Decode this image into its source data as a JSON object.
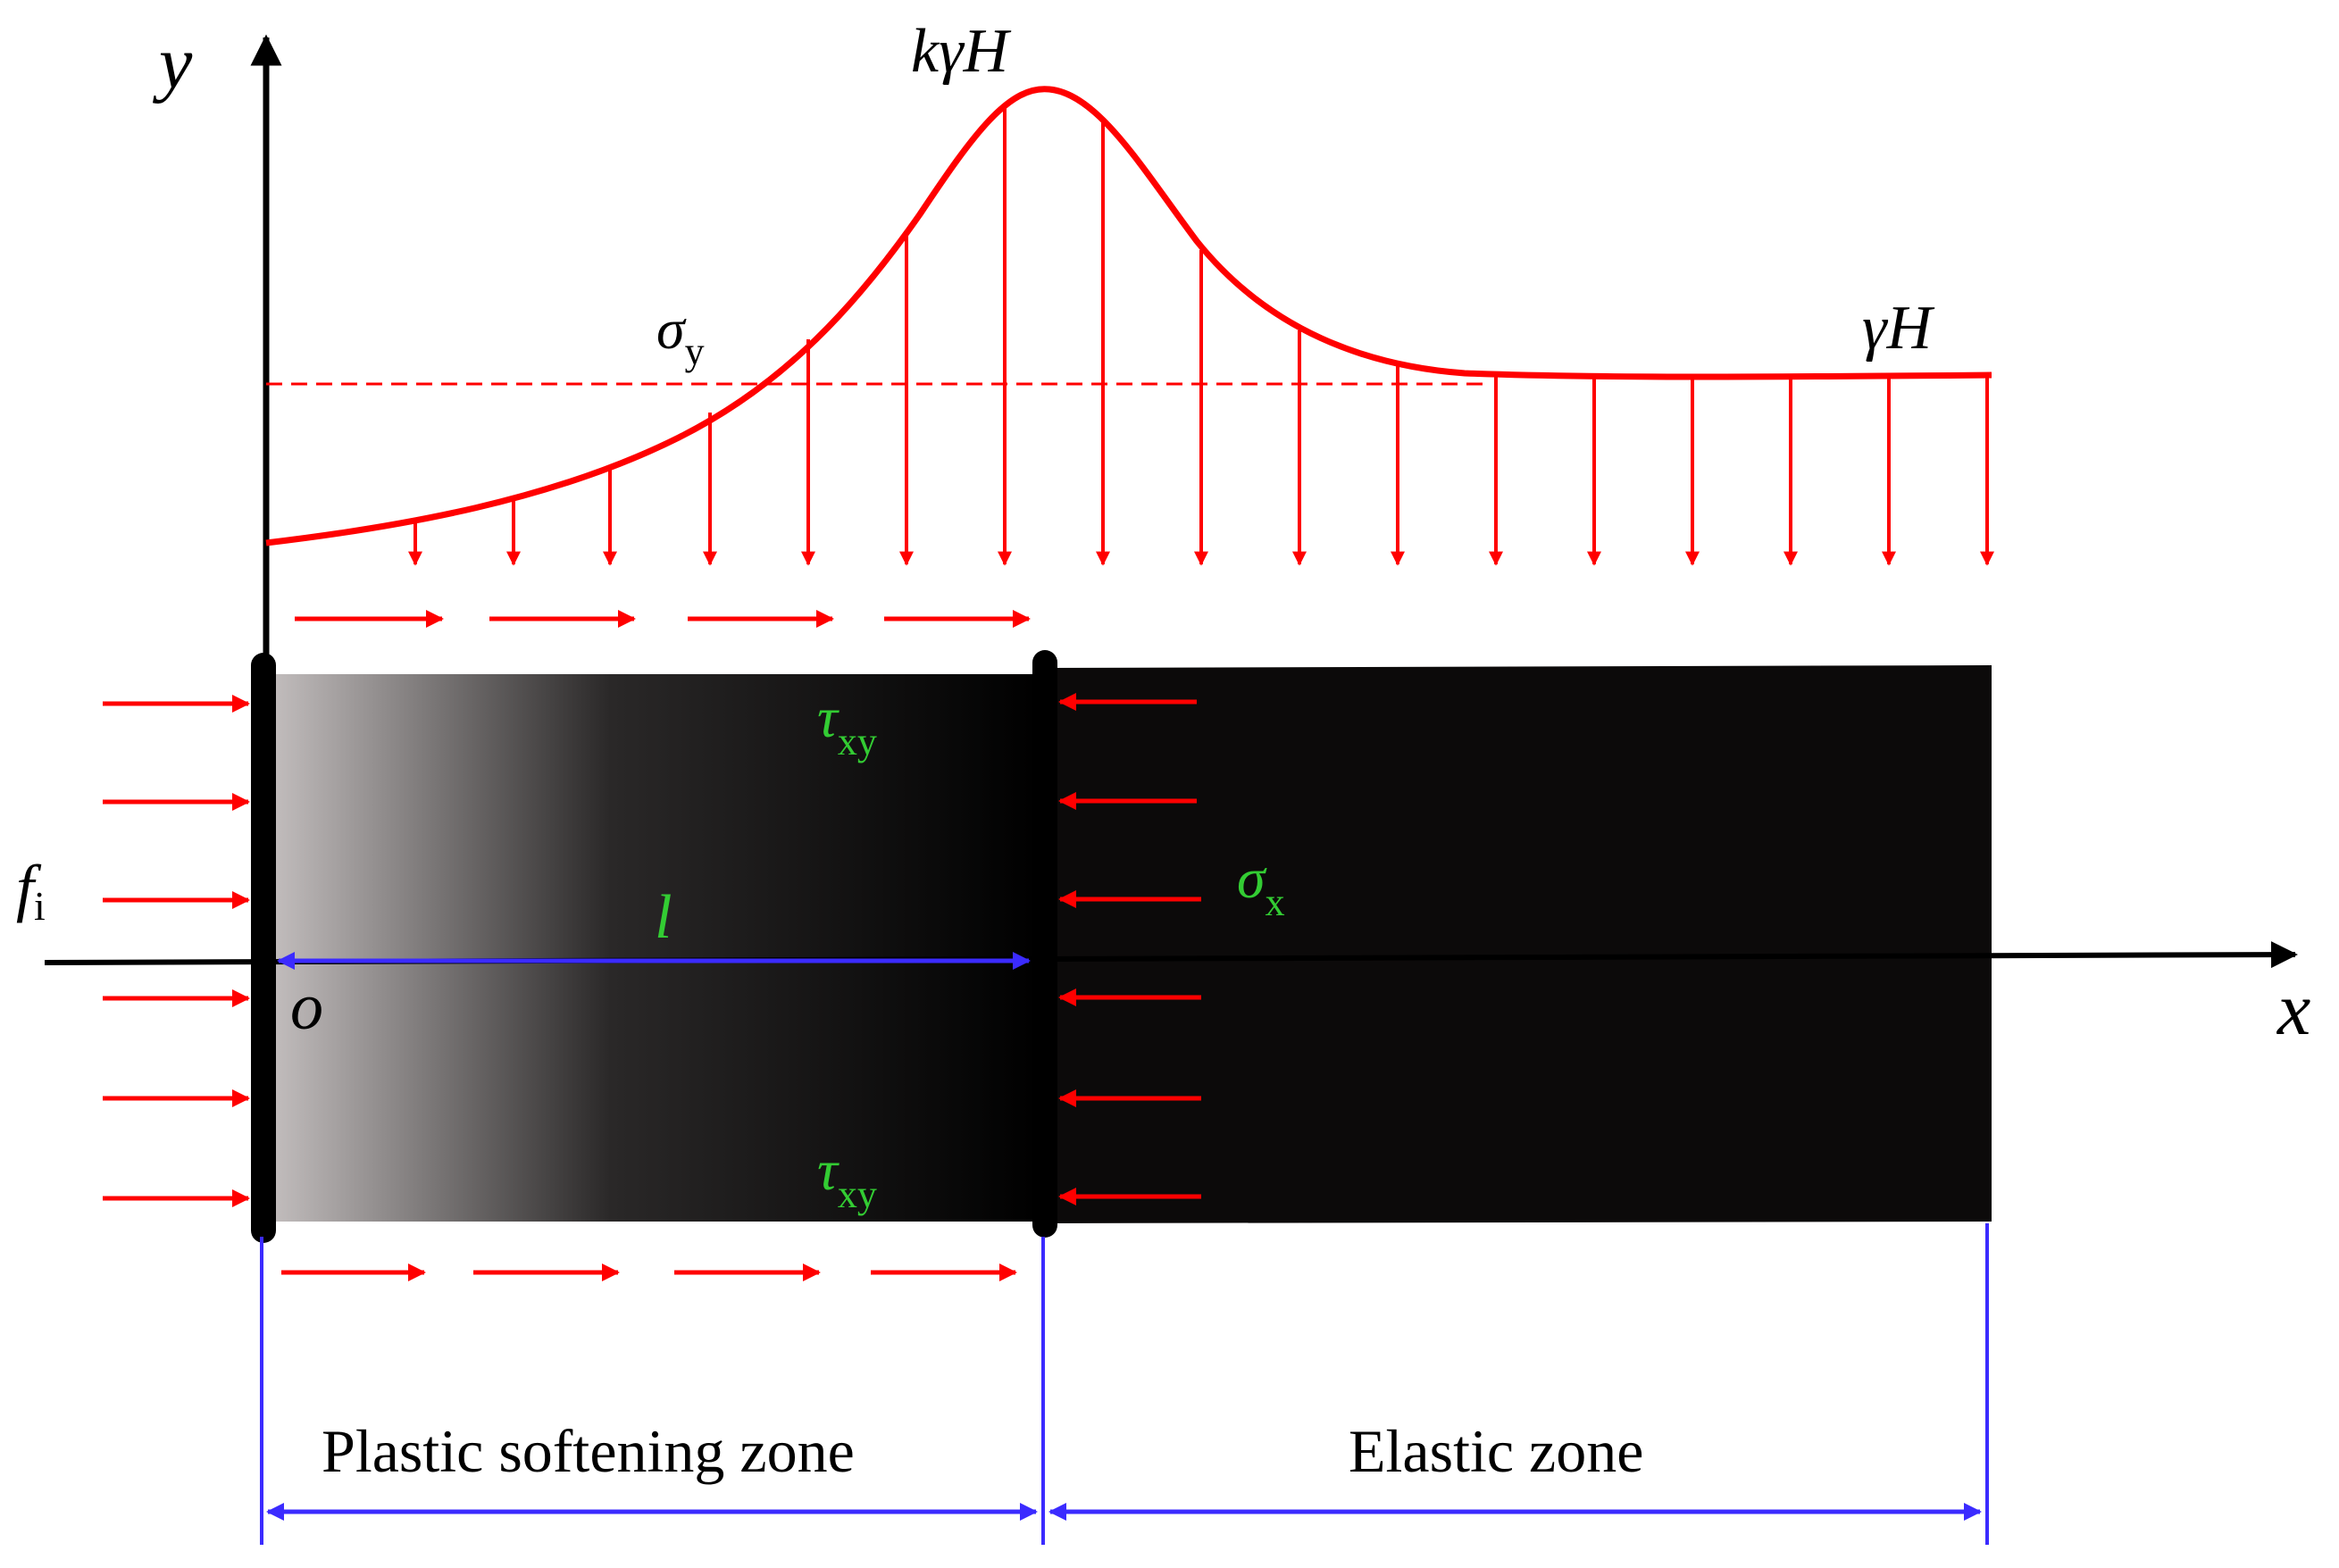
{
  "labels": {
    "y_axis": "y",
    "x_axis": "x",
    "origin": "o",
    "peak_stress": "kγH",
    "far_field_stress": "γH",
    "sigma_y_main": "σ",
    "sigma_y_sub": "y",
    "sigma_x_main": "σ",
    "sigma_x_sub": "x",
    "tau_top_main": "τ",
    "tau_top_sub": "xy",
    "tau_bottom_main": "τ",
    "tau_bottom_sub": "xy",
    "f_main": "f",
    "f_sub": "i",
    "width_l": "l",
    "zone_plastic": "Plastic softening zone",
    "zone_elastic": "Elastic zone"
  },
  "colors": {
    "load_red": "#ff0000",
    "label_green": "#33cc33",
    "dimension_blue": "#3b2bff",
    "axis_black": "#000000",
    "gradient_start": "#c8c3c3",
    "gradient_end": "#000000"
  }
}
